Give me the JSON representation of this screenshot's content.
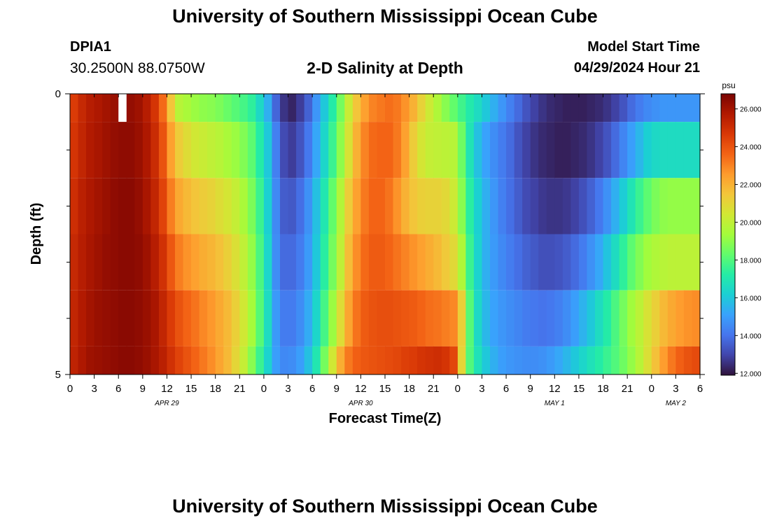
{
  "page": {
    "title_top": "University of Southern Mississippi Ocean Cube",
    "title_bottom": "University of Southern Mississippi Ocean Cube",
    "station_id": "DPIA1",
    "station_coords": "30.2500N  88.0750W",
    "plot_title": "2-D Salinity at Depth",
    "model_start_label": "Model Start Time",
    "model_start_value": "04/29/2024 Hour 21"
  },
  "chart_data": {
    "type": "heatmap",
    "title": "2-D Salinity at Depth",
    "xlabel": "Forecast Time(Z)",
    "ylabel": "Depth (ft)",
    "colorbar_unit": "psu",
    "x_start": "2024-04-29 00Z",
    "x_step_hours": 1,
    "x_range_hours": [
      0,
      78
    ],
    "x_tick_labels": [
      "0",
      "3",
      "6",
      "9",
      "12",
      "15",
      "18",
      "21",
      "0",
      "3",
      "6",
      "9",
      "12",
      "15",
      "18",
      "21",
      "0",
      "3",
      "6",
      "9",
      "12",
      "15",
      "18",
      "21",
      "0",
      "3",
      "6"
    ],
    "date_labels": [
      {
        "hour": 12,
        "text": "APR 29"
      },
      {
        "hour": 36,
        "text": "APR 30"
      },
      {
        "hour": 60,
        "text": "MAY 1"
      },
      {
        "hour": 75,
        "text": "MAY 2"
      }
    ],
    "y_range": [
      0,
      5
    ],
    "y_tick_labels": [
      {
        "value": 0,
        "text": "0"
      },
      {
        "value": 5,
        "text": "5"
      }
    ],
    "y_minor_ticks": [
      1,
      2,
      3,
      4
    ],
    "color_range": [
      11.9,
      26.8
    ],
    "colorbar_ticks": [
      "12.000",
      "14.000",
      "16.000",
      "18.000",
      "20.000",
      "22.000",
      "24.000",
      "26.000"
    ],
    "colormap": [
      "#30123b",
      "#4145ab",
      "#4675ed",
      "#39a2fc",
      "#1bcfd4",
      "#24eca6",
      "#61fc6c",
      "#a4fc3b",
      "#d1e834",
      "#f3c63a",
      "#fe9b2d",
      "#f36315",
      "#d93806",
      "#b11901",
      "#7a0402"
    ],
    "missing_cell": {
      "hour": 6,
      "layer": 0,
      "color": "#ffffff"
    },
    "layers": [
      {
        "depth_top": 0,
        "depth_bottom": 0.5,
        "salinity": [
          24.6,
          25.2,
          25.6,
          25.8,
          26.0,
          26.2,
          26.3,
          26.3,
          26.1,
          25.6,
          24.8,
          23.5,
          21.5,
          19.8,
          19.5,
          19.2,
          19.0,
          18.9,
          18.7,
          18.4,
          18.1,
          17.8,
          17.4,
          16.5,
          15.4,
          13.7,
          12.6,
          12.3,
          12.8,
          13.6,
          14.8,
          16.0,
          17.2,
          18.6,
          20.2,
          21.5,
          22.4,
          23.0,
          23.2,
          23.4,
          23.2,
          22.7,
          22.0,
          21.1,
          20.3,
          19.6,
          18.9,
          18.3,
          17.7,
          17.1,
          16.6,
          16.0,
          15.4,
          14.8,
          14.3,
          13.8,
          13.3,
          12.9,
          12.6,
          12.4,
          12.3,
          12.2,
          12.2,
          12.2,
          12.3,
          12.4,
          12.6,
          12.9,
          13.3,
          13.8,
          14.2,
          14.5,
          14.7,
          14.8,
          14.8,
          14.8,
          14.8,
          14.8
        ]
      },
      {
        "depth_top": 0.5,
        "depth_bottom": 1.5,
        "salinity": [
          24.8,
          25.3,
          25.7,
          25.9,
          26.1,
          26.3,
          26.4,
          26.4,
          26.2,
          25.8,
          25.1,
          24.0,
          22.4,
          21.3,
          20.8,
          20.4,
          20.2,
          20.0,
          19.8,
          19.5,
          19.2,
          18.8,
          18.2,
          17.2,
          16.0,
          14.3,
          13.1,
          12.8,
          13.3,
          14.1,
          15.2,
          16.4,
          17.6,
          19.0,
          20.6,
          22.0,
          23.0,
          23.5,
          23.6,
          23.6,
          23.2,
          22.4,
          21.3,
          20.5,
          20.1,
          20.0,
          19.9,
          19.8,
          18.5,
          16.9,
          15.8,
          15.1,
          14.6,
          14.2,
          13.8,
          13.3,
          12.9,
          12.6,
          12.4,
          12.3,
          12.2,
          12.2,
          12.3,
          12.4,
          12.6,
          12.9,
          13.3,
          13.8,
          14.4,
          15.0,
          15.6,
          16.2,
          16.5,
          16.6,
          16.6,
          16.6,
          16.6,
          16.6
        ]
      },
      {
        "depth_top": 1.5,
        "depth_bottom": 2.5,
        "salinity": [
          25.0,
          25.5,
          25.8,
          26.0,
          26.2,
          26.4,
          26.5,
          26.5,
          26.3,
          25.9,
          25.3,
          24.4,
          23.1,
          22.2,
          21.8,
          21.5,
          21.3,
          21.1,
          20.8,
          20.5,
          20.1,
          19.5,
          18.7,
          17.6,
          16.2,
          14.5,
          13.5,
          13.4,
          13.9,
          14.7,
          15.8,
          17.0,
          18.3,
          19.7,
          21.3,
          22.4,
          23.2,
          23.6,
          23.6,
          23.3,
          22.7,
          22.0,
          21.5,
          21.2,
          21.1,
          21.1,
          20.9,
          20.3,
          18.9,
          17.3,
          16.2,
          15.4,
          14.8,
          14.3,
          13.9,
          13.5,
          13.1,
          12.9,
          12.7,
          12.6,
          12.6,
          12.7,
          12.9,
          13.2,
          13.6,
          14.1,
          14.7,
          15.4,
          16.1,
          16.9,
          17.6,
          18.2,
          18.7,
          19.0,
          19.1,
          19.1,
          19.1,
          19.1
        ]
      },
      {
        "depth_top": 2.5,
        "depth_bottom": 3.5,
        "salinity": [
          25.2,
          25.6,
          25.9,
          26.1,
          26.3,
          26.4,
          26.5,
          26.5,
          26.4,
          26.1,
          25.6,
          24.9,
          23.9,
          23.1,
          22.7,
          22.4,
          22.1,
          21.9,
          21.6,
          21.2,
          20.7,
          20.0,
          19.1,
          17.9,
          16.4,
          14.6,
          13.8,
          13.8,
          14.2,
          14.9,
          16.0,
          17.3,
          18.6,
          20.0,
          21.7,
          22.8,
          23.5,
          23.8,
          23.8,
          23.6,
          23.3,
          23.0,
          22.7,
          22.4,
          22.1,
          21.8,
          21.4,
          20.9,
          19.6,
          17.6,
          16.3,
          15.4,
          14.9,
          14.5,
          14.2,
          13.9,
          13.6,
          13.4,
          13.2,
          13.2,
          13.3,
          13.5,
          13.8,
          14.2,
          14.7,
          15.2,
          15.9,
          16.6,
          17.4,
          18.2,
          18.8,
          19.3,
          19.6,
          19.8,
          19.9,
          19.9,
          19.9,
          19.9
        ]
      },
      {
        "depth_top": 3.5,
        "depth_bottom": 4.5,
        "salinity": [
          25.3,
          25.7,
          26.0,
          26.2,
          26.3,
          26.4,
          26.5,
          26.5,
          26.4,
          26.2,
          25.9,
          25.3,
          24.6,
          24.0,
          23.6,
          23.3,
          22.9,
          22.6,
          22.2,
          21.8,
          21.2,
          20.4,
          19.4,
          18.1,
          16.6,
          14.9,
          14.2,
          14.2,
          14.6,
          15.3,
          16.4,
          17.8,
          19.2,
          20.8,
          22.3,
          23.3,
          23.8,
          24.0,
          24.1,
          24.1,
          24.0,
          23.9,
          23.8,
          23.6,
          23.4,
          23.3,
          23.1,
          22.9,
          21.2,
          18.1,
          16.5,
          15.6,
          15.1,
          14.8,
          14.6,
          14.4,
          14.2,
          14.1,
          14.0,
          14.1,
          14.3,
          14.6,
          15.0,
          15.5,
          16.0,
          16.6,
          17.2,
          17.9,
          18.6,
          19.3,
          19.9,
          20.6,
          21.2,
          21.8,
          22.2,
          22.5,
          22.7,
          22.8
        ]
      },
      {
        "depth_top": 4.5,
        "depth_bottom": 5.0,
        "salinity": [
          25.4,
          25.8,
          26.1,
          26.2,
          26.3,
          26.4,
          26.5,
          26.5,
          26.4,
          26.2,
          25.9,
          25.5,
          24.9,
          24.4,
          24.0,
          23.6,
          23.2,
          22.8,
          22.3,
          21.8,
          21.0,
          20.1,
          18.9,
          17.6,
          16.3,
          15.0,
          14.5,
          14.6,
          15.0,
          15.8,
          17.0,
          18.6,
          20.4,
          22.1,
          23.2,
          23.7,
          23.9,
          24.0,
          24.1,
          24.2,
          24.3,
          24.5,
          24.6,
          24.8,
          24.9,
          25.0,
          24.8,
          24.3,
          21.0,
          18.0,
          16.8,
          16.0,
          15.4,
          15.0,
          14.8,
          14.7,
          14.6,
          14.6,
          14.7,
          14.9,
          15.2,
          15.6,
          16.0,
          16.4,
          16.8,
          17.2,
          17.6,
          18.0,
          18.5,
          19.1,
          19.8,
          20.7,
          21.6,
          22.5,
          23.2,
          23.7,
          24.0,
          24.2
        ]
      }
    ]
  }
}
